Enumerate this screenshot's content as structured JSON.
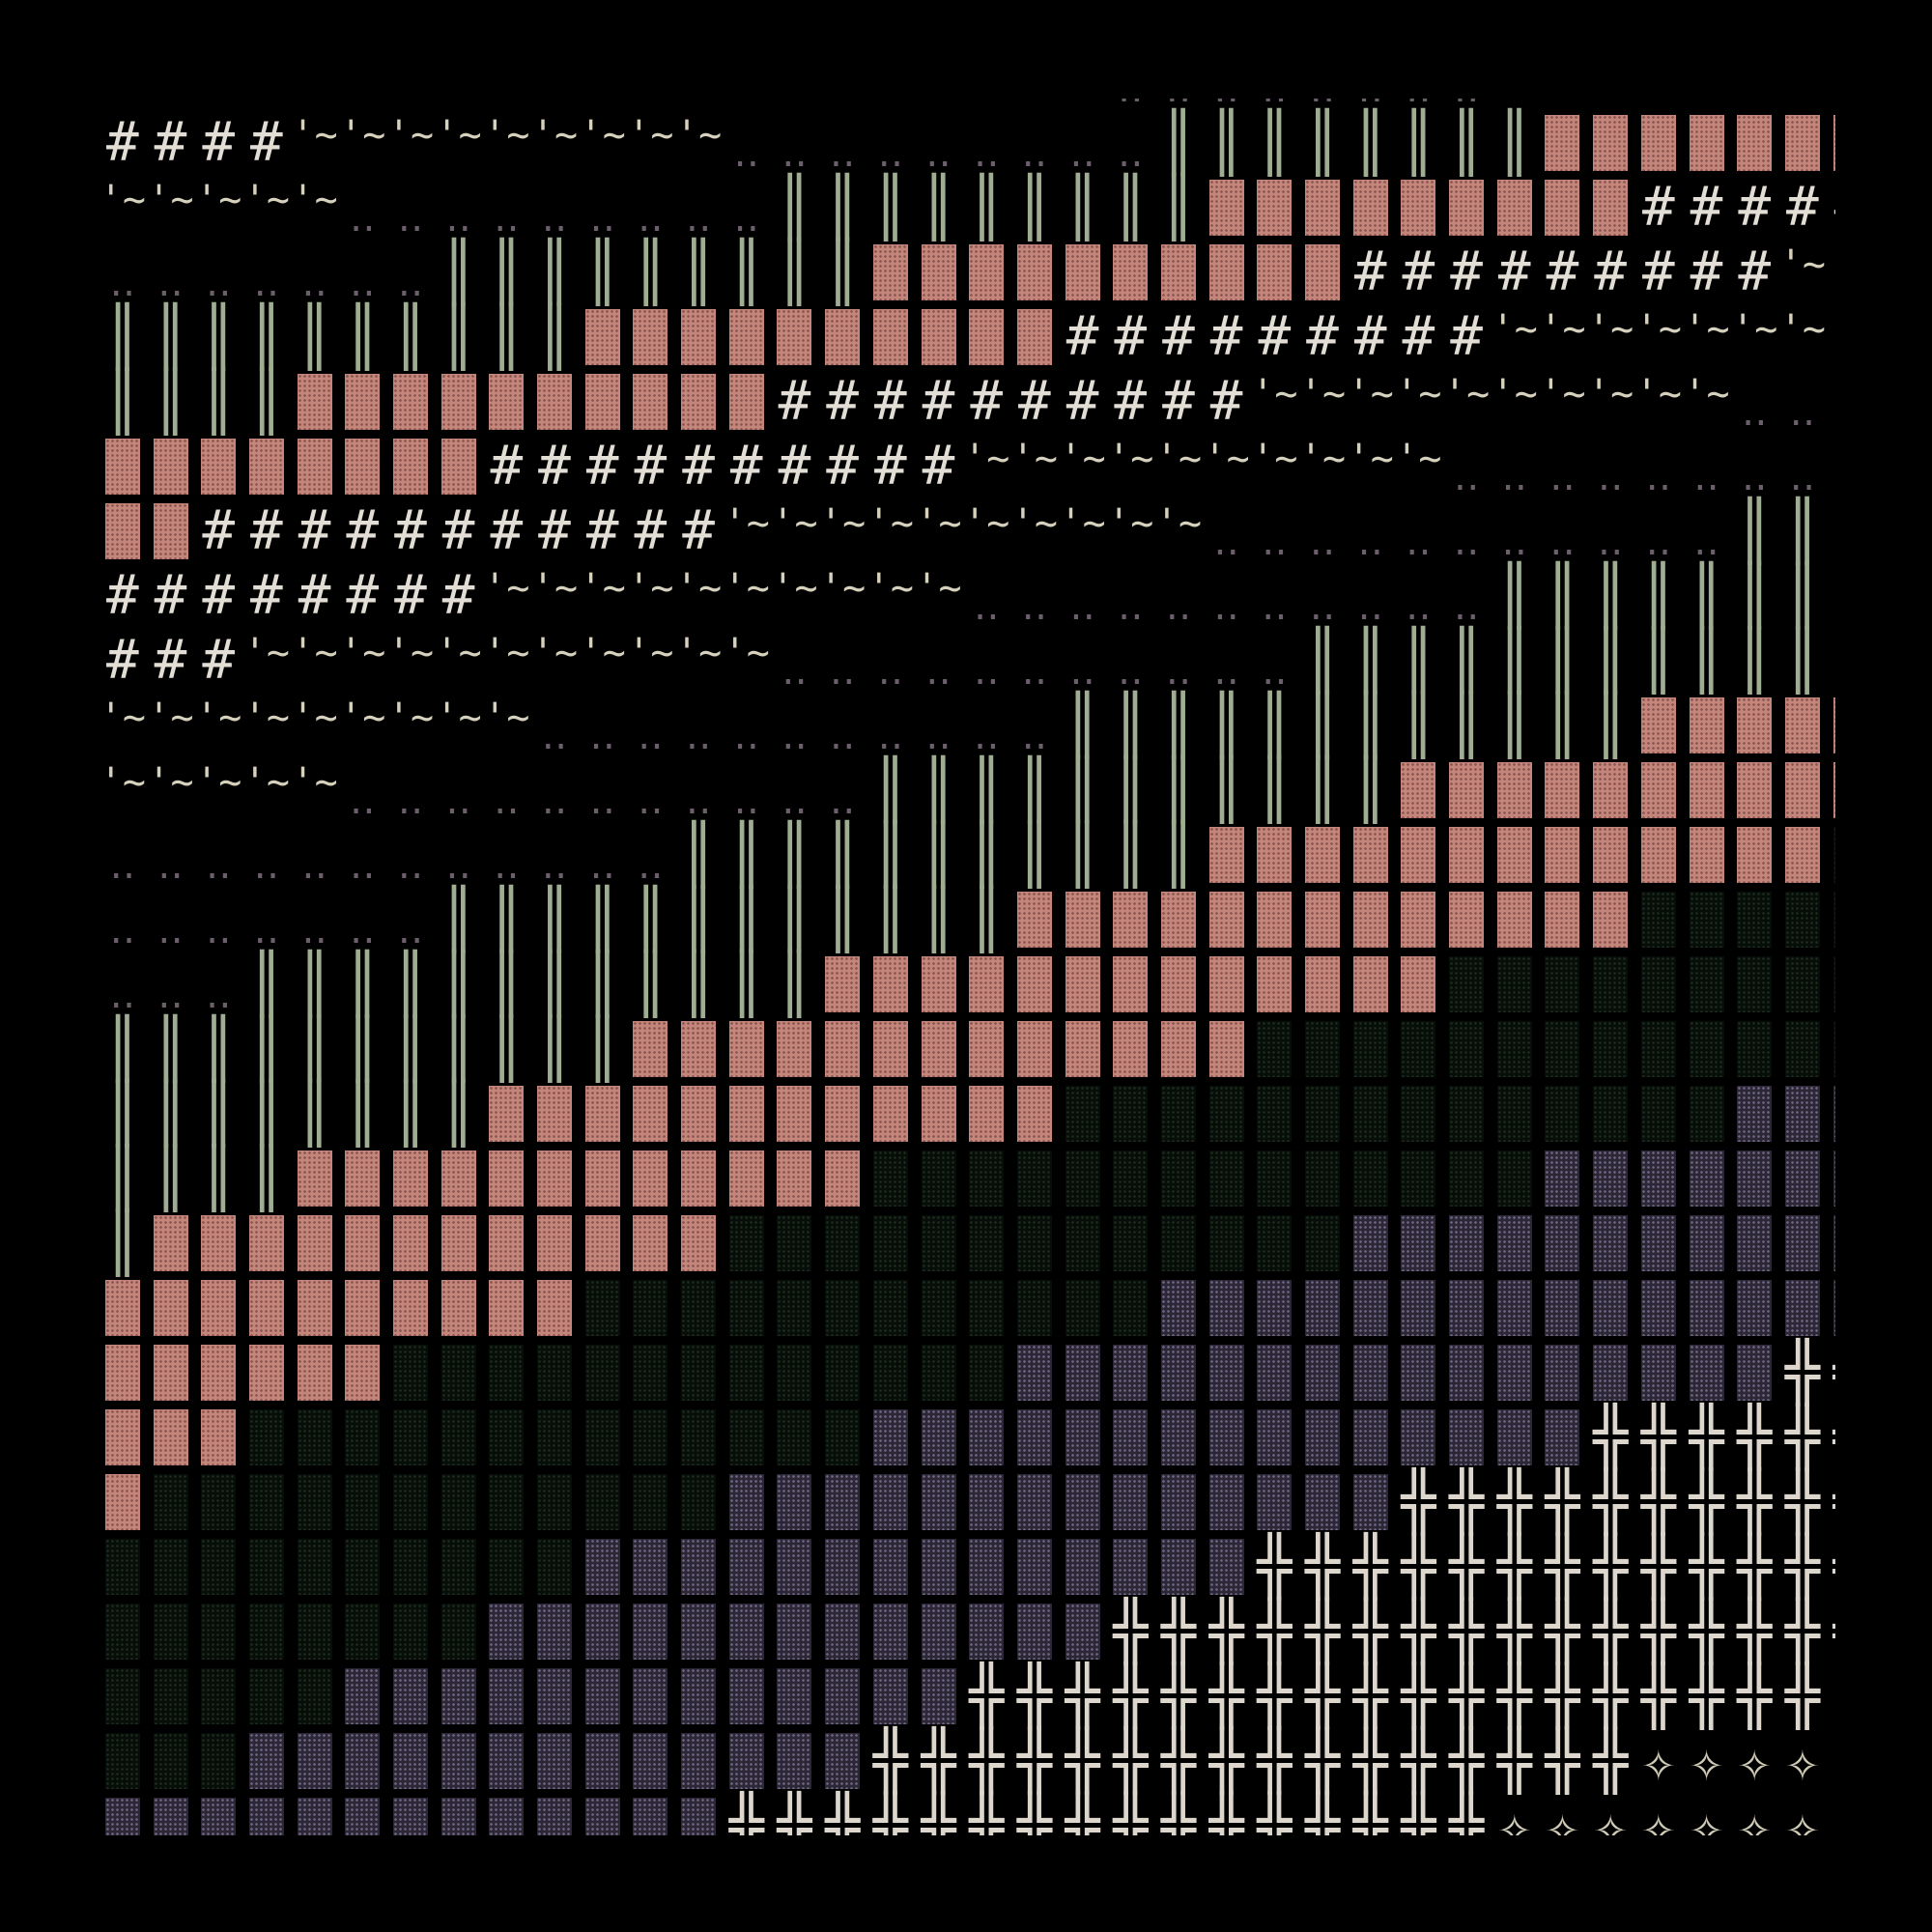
{
  "glyphs": {
    "hash": "#",
    "tilde": "'~",
    "dots": "‥",
    "bars": "║",
    "cross": "╬",
    "star": "✧",
    "pink": "",
    "green": "",
    "purple": "",
    "blank": ""
  },
  "colors": {
    "background": "#000000",
    "hash": "#e2ddd5",
    "tilde": "#d6d1bd",
    "dots": "#6c5f6c",
    "bars": "#9fae92",
    "pink": "#c4857b",
    "green": "#0e1a10",
    "purple": "#4a4458",
    "cross": "#dcd6cc",
    "star": "#cfcbb6"
  },
  "rows": [
    [
      [
        "blank",
        21
      ],
      [
        "dots",
        8
      ]
    ],
    [
      [
        "hash",
        4
      ],
      [
        "tilde",
        9
      ],
      [
        "dots",
        9
      ],
      [
        "bars",
        8
      ],
      [
        "pink",
        7
      ]
    ],
    [
      [
        "tilde",
        5
      ],
      [
        "dots",
        9
      ],
      [
        "bars",
        9
      ],
      [
        "pink",
        9
      ],
      [
        "hash",
        5
      ]
    ],
    [
      [
        "dots",
        7
      ],
      [
        "bars",
        9
      ],
      [
        "pink",
        10
      ],
      [
        "hash",
        9
      ],
      [
        "tilde",
        2
      ]
    ],
    [
      [
        "bars",
        10
      ],
      [
        "pink",
        10
      ],
      [
        "hash",
        9
      ],
      [
        "tilde",
        8
      ]
    ],
    [
      [
        "bars",
        4
      ],
      [
        "pink",
        10
      ],
      [
        "hash",
        10
      ],
      [
        "tilde",
        10
      ],
      [
        "dots",
        3
      ]
    ],
    [
      [
        "pink",
        8
      ],
      [
        "hash",
        10
      ],
      [
        "tilde",
        10
      ],
      [
        "dots",
        9
      ]
    ],
    [
      [
        "pink",
        2
      ],
      [
        "hash",
        11
      ],
      [
        "tilde",
        10
      ],
      [
        "dots",
        11
      ],
      [
        "bars",
        3
      ]
    ],
    [
      [
        "hash",
        8
      ],
      [
        "tilde",
        10
      ],
      [
        "dots",
        11
      ],
      [
        "bars",
        8
      ]
    ],
    [
      [
        "hash",
        3
      ],
      [
        "tilde",
        11
      ],
      [
        "dots",
        11
      ],
      [
        "bars",
        12
      ]
    ],
    [
      [
        "tilde",
        9
      ],
      [
        "dots",
        11
      ],
      [
        "bars",
        12
      ],
      [
        "pink",
        5
      ]
    ],
    [
      [
        "tilde",
        5
      ],
      [
        "dots",
        11
      ],
      [
        "bars",
        11
      ],
      [
        "pink",
        10
      ]
    ],
    [
      [
        "dots",
        12
      ],
      [
        "bars",
        11
      ],
      [
        "pink",
        13
      ],
      [
        "green",
        1
      ]
    ],
    [
      [
        "dots",
        7
      ],
      [
        "bars",
        12
      ],
      [
        "pink",
        13
      ],
      [
        "green",
        5
      ]
    ],
    [
      [
        "dots",
        3
      ],
      [
        "bars",
        12
      ],
      [
        "pink",
        13
      ],
      [
        "green",
        9
      ]
    ],
    [
      [
        "bars",
        11
      ],
      [
        "pink",
        13
      ],
      [
        "green",
        13
      ]
    ],
    [
      [
        "bars",
        8
      ],
      [
        "pink",
        12
      ],
      [
        "green",
        14
      ],
      [
        "purple",
        3
      ]
    ],
    [
      [
        "bars",
        4
      ],
      [
        "pink",
        12
      ],
      [
        "green",
        14
      ],
      [
        "purple",
        7
      ]
    ],
    [
      [
        "bars",
        1
      ],
      [
        "pink",
        12
      ],
      [
        "green",
        13
      ],
      [
        "purple",
        11
      ]
    ],
    [
      [
        "pink",
        10
      ],
      [
        "green",
        12
      ],
      [
        "purple",
        15
      ]
    ],
    [
      [
        "pink",
        6
      ],
      [
        "green",
        13
      ],
      [
        "purple",
        16
      ],
      [
        "cross",
        2
      ]
    ],
    [
      [
        "pink",
        3
      ],
      [
        "green",
        13
      ],
      [
        "purple",
        15
      ],
      [
        "cross",
        6
      ]
    ],
    [
      [
        "pink",
        1
      ],
      [
        "green",
        12
      ],
      [
        "purple",
        14
      ],
      [
        "cross",
        10
      ]
    ],
    [
      [
        "green",
        10
      ],
      [
        "purple",
        14
      ],
      [
        "cross",
        13
      ]
    ],
    [
      [
        "green",
        8
      ],
      [
        "purple",
        13
      ],
      [
        "cross",
        16
      ]
    ],
    [
      [
        "green",
        5
      ],
      [
        "purple",
        13
      ],
      [
        "cross",
        18
      ],
      [
        "star",
        1
      ]
    ],
    [
      [
        "green",
        3
      ],
      [
        "purple",
        13
      ],
      [
        "cross",
        16
      ],
      [
        "star",
        5
      ]
    ],
    [
      [
        "purple",
        13
      ],
      [
        "cross",
        16
      ],
      [
        "star",
        8
      ]
    ]
  ]
}
